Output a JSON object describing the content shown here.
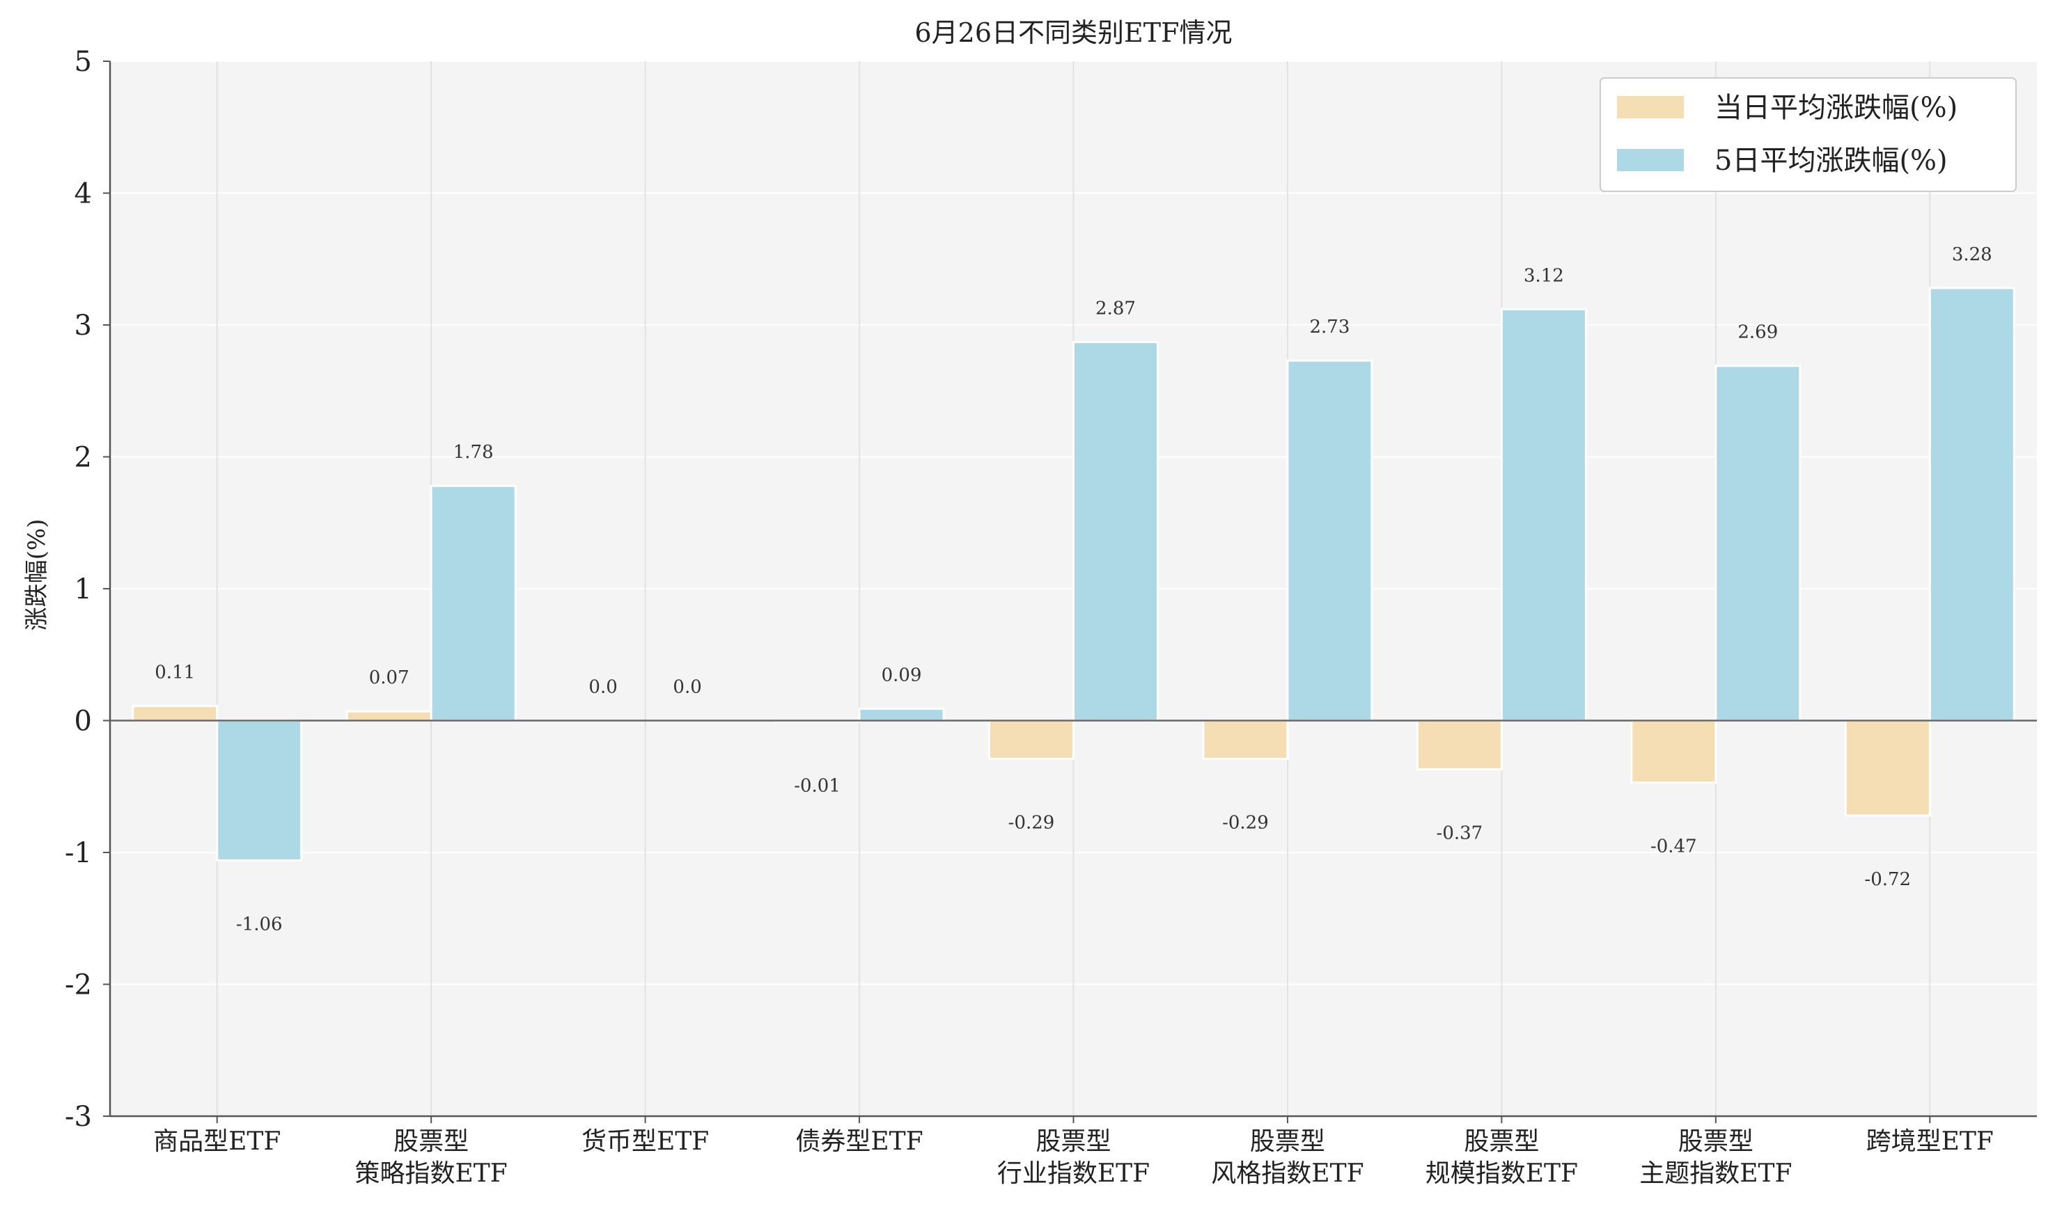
{
  "chart_data": {
    "type": "bar",
    "title": "6月26日不同类别ETF情况",
    "ylabel": "涨跌幅(%)",
    "xlabel": "",
    "ylim": [
      -3,
      5
    ],
    "yticks": [
      "-3",
      "-2",
      "-1",
      "0",
      "1",
      "2",
      "3",
      "4",
      "5"
    ],
    "grid": true,
    "legend_position": "top-right",
    "categories": [
      [
        "商品型ETF"
      ],
      [
        "股票型",
        "策略指数ETF"
      ],
      [
        "货币型ETF"
      ],
      [
        "债券型ETF"
      ],
      [
        "股票型",
        "行业指数ETF"
      ],
      [
        "股票型",
        "风格指数ETF"
      ],
      [
        "股票型",
        "规模指数ETF"
      ],
      [
        "股票型",
        "主题指数ETF"
      ],
      [
        "跨境型ETF"
      ]
    ],
    "series": [
      {
        "name": "当日平均涨跌幅(%)",
        "color": "#F5DEB3",
        "values": [
          0.11,
          0.07,
          0.0,
          -0.01,
          -0.29,
          -0.29,
          -0.37,
          -0.47,
          -0.72
        ],
        "labels": [
          "0.11",
          "0.07",
          "0.0",
          "-0.01",
          "-0.29",
          "-0.29",
          "-0.37",
          "-0.47",
          "-0.72"
        ]
      },
      {
        "name": "5日平均涨跌幅(%)",
        "color": "#ADD8E6",
        "values": [
          -1.06,
          1.78,
          0.0,
          0.09,
          2.87,
          2.73,
          3.12,
          2.69,
          3.28
        ],
        "labels": [
          "-1.06",
          "1.78",
          "0.0",
          "0.09",
          "2.87",
          "2.73",
          "3.12",
          "2.69",
          "3.28"
        ]
      }
    ]
  }
}
